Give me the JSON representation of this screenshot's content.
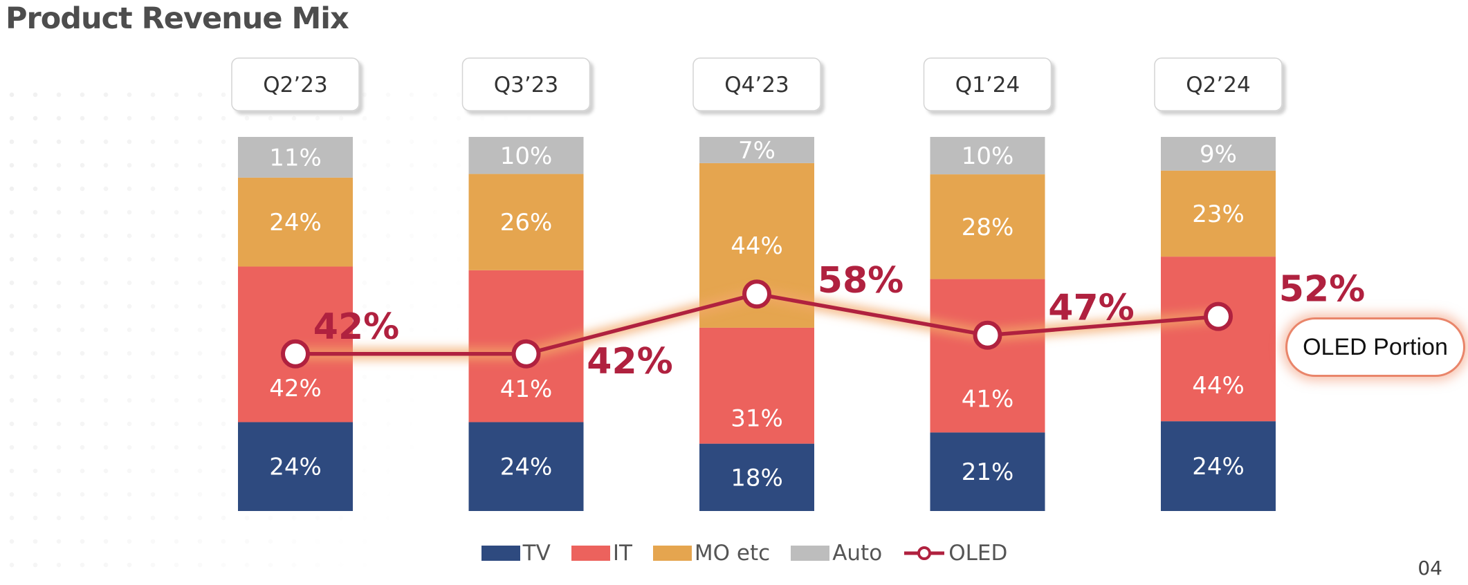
{
  "title": "Product Revenue Mix",
  "page_number": "04",
  "oled_portion_label": "OLED Portion",
  "colors": {
    "TV": "#2e4a7f",
    "IT": "#ec625d",
    "MO etc": "#e5a54f",
    "Auto": "#bdbdbd",
    "OLED": "#b0213f"
  },
  "legend": [
    {
      "label": "TV",
      "type": "swatch",
      "series": "TV"
    },
    {
      "label": "IT",
      "type": "swatch",
      "series": "IT"
    },
    {
      "label": "MO etc",
      "type": "swatch",
      "series": "MO etc"
    },
    {
      "label": "Auto",
      "type": "swatch",
      "series": "Auto"
    },
    {
      "label": "OLED",
      "type": "line",
      "series": "OLED"
    }
  ],
  "chart_data": {
    "type": "bar",
    "stacked": true,
    "categories": [
      "Q2’23",
      "Q3’23",
      "Q4’23",
      "Q1’24",
      "Q2’24"
    ],
    "series": [
      {
        "name": "TV",
        "values": [
          24,
          24,
          18,
          21,
          24
        ]
      },
      {
        "name": "IT",
        "values": [
          42,
          41,
          31,
          41,
          44
        ]
      },
      {
        "name": "MO etc",
        "values": [
          24,
          26,
          44,
          28,
          23
        ]
      },
      {
        "name": "Auto",
        "values": [
          11,
          10,
          7,
          10,
          9
        ]
      }
    ],
    "line_series": {
      "name": "OLED",
      "values": [
        42,
        42,
        58,
        47,
        52
      ]
    },
    "value_suffix": "%",
    "legend_position": "bottom",
    "grid": false
  }
}
